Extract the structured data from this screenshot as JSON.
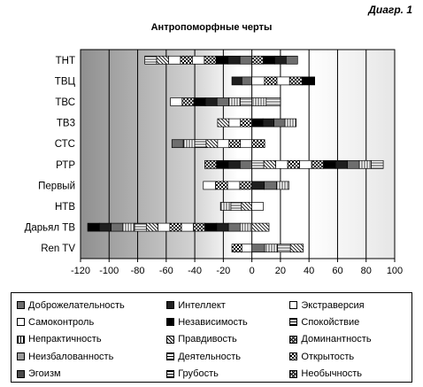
{
  "figure_label": "Диагр. 1",
  "chart_data": {
    "type": "bar",
    "orientation": "horizontal",
    "stacked": true,
    "title": "Антропоморфные черты",
    "xlabel": "",
    "ylabel": "",
    "xlim": [
      -120,
      100
    ],
    "xticks": [
      -120,
      -100,
      -80,
      -60,
      -40,
      -20,
      0,
      20,
      40,
      60,
      80,
      100
    ],
    "grid": true,
    "legend_position": "bottom",
    "categories": [
      "ТНТ",
      "ТВЦ",
      "ТВС",
      "ТВ3",
      "СТС",
      "РТР",
      "Первый",
      "НТВ",
      "Дарьял ТВ",
      "Ren TV"
    ],
    "bars": [
      {
        "category": "ТНТ",
        "negative_total": -75,
        "positive_total": 32
      },
      {
        "category": "ТВЦ",
        "negative_total": -14,
        "positive_total": 44
      },
      {
        "category": "ТВС",
        "negative_total": -57,
        "positive_total": 20
      },
      {
        "category": "ТВ3",
        "negative_total": -24,
        "positive_total": 31
      },
      {
        "category": "СТС",
        "negative_total": -56,
        "positive_total": 9
      },
      {
        "category": "РТР",
        "negative_total": -33,
        "positive_total": 92
      },
      {
        "category": "Первый",
        "negative_total": -34,
        "positive_total": 26
      },
      {
        "category": "НТВ",
        "negative_total": -22,
        "positive_total": 8
      },
      {
        "category": "Дарьял ТВ",
        "negative_total": -115,
        "positive_total": 12
      },
      {
        "category": "Ren TV",
        "negative_total": -14,
        "positive_total": 36
      }
    ],
    "legend": [
      {
        "label": "Доброжелательность",
        "fill": "#6e6e6e",
        "pattern": "solid"
      },
      {
        "label": "Интеллект",
        "fill": "#222222",
        "pattern": "solid"
      },
      {
        "label": "Экстраверсия",
        "fill": "#ffffff",
        "pattern": "solid"
      },
      {
        "label": "Самоконтроль",
        "fill": "#ffffff",
        "pattern": "solid"
      },
      {
        "label": "Независимость",
        "fill": "#000000",
        "pattern": "solid"
      },
      {
        "label": "Спокойствие",
        "fill": "#ffffff",
        "pattern": "hlines"
      },
      {
        "label": "Непрактичность",
        "fill": "#ffffff",
        "pattern": "vlines"
      },
      {
        "label": "Правдивость",
        "fill": "#ffffff",
        "pattern": "diag"
      },
      {
        "label": "Доминантность",
        "fill": "#ffffff",
        "pattern": "cross"
      },
      {
        "label": "Неизбалованность",
        "fill": "#9a9a9a",
        "pattern": "solid"
      },
      {
        "label": "Деятельность",
        "fill": "#ffffff",
        "pattern": "hlines"
      },
      {
        "label": "Открытость",
        "fill": "#ffffff",
        "pattern": "checker"
      },
      {
        "label": "Эгоизм",
        "fill": "#4a4a4a",
        "pattern": "solid"
      },
      {
        "label": "Грубость",
        "fill": "#ffffff",
        "pattern": "hlines"
      },
      {
        "label": "Необычность",
        "fill": "#ffffff",
        "pattern": "cross"
      }
    ]
  }
}
